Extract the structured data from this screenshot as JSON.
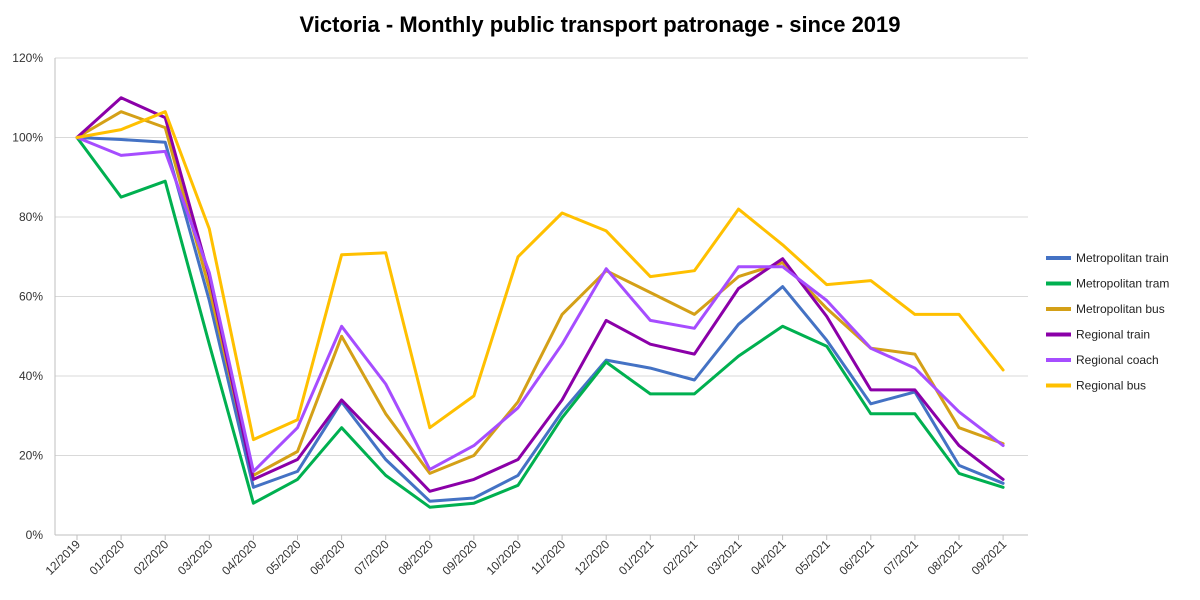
{
  "chart_data": {
    "type": "line",
    "title": "Victoria - Monthly public transport patronage - since 2019",
    "xlabel": "",
    "ylabel": "",
    "ylim": [
      0,
      120
    ],
    "yticks": [
      "0%",
      "20%",
      "40%",
      "60%",
      "80%",
      "100%",
      "120%"
    ],
    "grid": true,
    "legend_position": "right",
    "categories": [
      "12/2019",
      "01/2020",
      "02/2020",
      "03/2020",
      "04/2020",
      "05/2020",
      "06/2020",
      "07/2020",
      "08/2020",
      "09/2020",
      "10/2020",
      "11/2020",
      "12/2020",
      "01/2021",
      "02/2021",
      "03/2021",
      "04/2021",
      "05/2021",
      "06/2021",
      "07/2021",
      "08/2021",
      "09/2021"
    ],
    "series": [
      {
        "name": "Metropolitan train",
        "color": "#4472C4",
        "values": [
          100,
          99.5,
          98.8,
          59,
          12,
          16,
          33.5,
          19,
          8.5,
          9.3,
          15,
          31,
          44,
          42,
          39,
          53,
          62.5,
          49,
          33,
          36,
          17.5,
          13
        ]
      },
      {
        "name": "Metropolitan tram",
        "color": "#00B050",
        "values": [
          100,
          85,
          89,
          48,
          8,
          14,
          27,
          15,
          7,
          8,
          12.5,
          29.5,
          43.5,
          35.5,
          35.5,
          45,
          52.5,
          47.5,
          30.5,
          30.5,
          15.5,
          12
        ]
      },
      {
        "name": "Metropolitan bus",
        "color": "#D4A017",
        "values": [
          100,
          106.5,
          102.5,
          62,
          15,
          21,
          50,
          30.5,
          15.5,
          20,
          33.5,
          55.5,
          66.5,
          61,
          55.5,
          65,
          68.5,
          57,
          47,
          45.5,
          27,
          23
        ]
      },
      {
        "name": "Regional train",
        "color": "#8B00A8",
        "values": [
          100,
          110,
          105,
          65,
          14,
          19,
          34,
          22.5,
          11,
          14,
          19,
          34,
          54,
          48,
          45.5,
          62,
          69.5,
          55,
          36.5,
          36.5,
          22.5,
          14
        ]
      },
      {
        "name": "Regional coach",
        "color": "#A64DFF",
        "values": [
          100,
          95.5,
          96.5,
          66,
          16,
          27,
          52.5,
          38,
          16.5,
          22.5,
          32,
          48,
          67,
          54,
          52,
          67.5,
          67.5,
          59,
          47,
          42,
          31,
          22.5
        ]
      },
      {
        "name": "Regional bus",
        "color": "#FFC000",
        "values": [
          100,
          102,
          106.5,
          77,
          24,
          29,
          70.5,
          71,
          27,
          35,
          70,
          81,
          76.5,
          65,
          66.5,
          82,
          73,
          63,
          64,
          55.5,
          55.5,
          41.5
        ]
      }
    ]
  }
}
